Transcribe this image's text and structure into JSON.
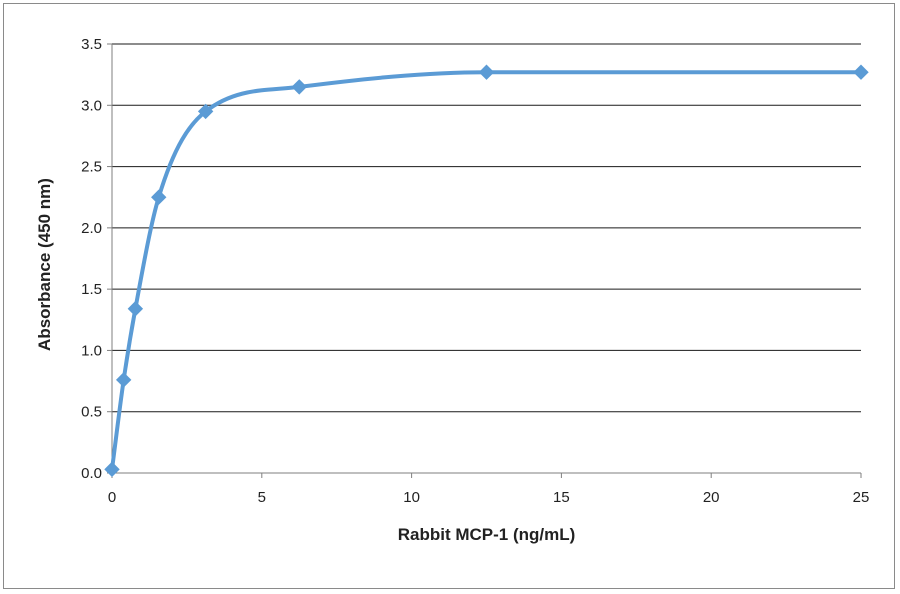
{
  "chart_data": {
    "type": "line",
    "title": "",
    "xlabel": "Rabbit MCP-1 (ng/mL)",
    "ylabel": "Absorbance (450 nm)",
    "xlim": [
      0,
      25
    ],
    "ylim": [
      0,
      3.5
    ],
    "x_ticks": [
      0,
      5,
      10,
      15,
      20,
      25
    ],
    "x_tick_labels": [
      "0",
      "5",
      "10",
      "15",
      "20",
      "25"
    ],
    "y_ticks": [
      0,
      0.5,
      1.0,
      1.5,
      2.0,
      2.5,
      3.0,
      3.5
    ],
    "y_tick_labels": [
      "0.0",
      "0.5",
      "1.0",
      "1.5",
      "2.0",
      "2.5",
      "3.0",
      "3.5"
    ],
    "grid": "horizontal",
    "legend": "none",
    "smooth": true,
    "series": [
      {
        "color": "#5b9bd5",
        "marker": "diamond",
        "points": [
          {
            "x": 0,
            "y": 0.03
          },
          {
            "x": 0.39,
            "y": 0.76
          },
          {
            "x": 0.78,
            "y": 1.34
          },
          {
            "x": 1.56,
            "y": 2.25
          },
          {
            "x": 3.125,
            "y": 2.95
          },
          {
            "x": 6.25,
            "y": 3.15
          },
          {
            "x": 12.5,
            "y": 3.27
          },
          {
            "x": 25,
            "y": 3.27
          }
        ]
      }
    ]
  }
}
